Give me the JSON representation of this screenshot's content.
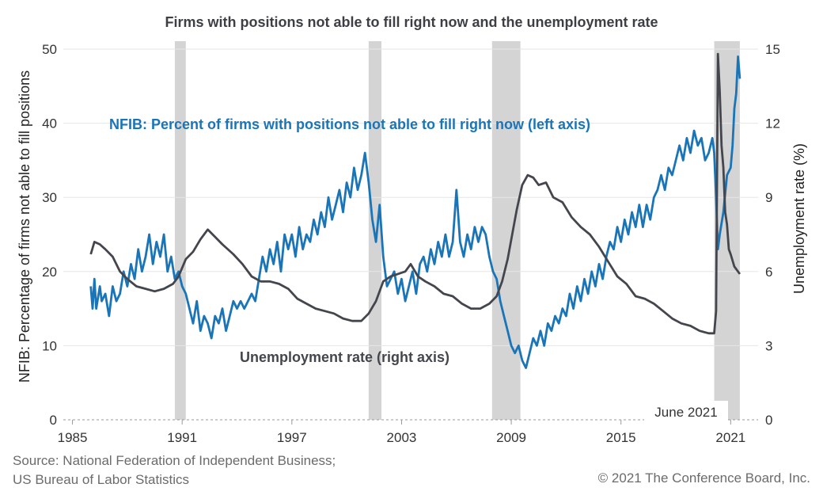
{
  "title": "Firms with positions not able to fill right now and the unemployment rate",
  "source_lines": [
    "Source: National Federation of Independent Business;",
    "US Bureau of Labor Statistics"
  ],
  "copyright": "© 2021 The Conference Board, Inc.",
  "chart_data": {
    "type": "line",
    "title": "Firms with positions not able to fill right now and the unemployment rate",
    "xlabel": "",
    "ylabel_left": "NFIB: Percentage of firms not able to fill positions",
    "ylabel_right": "Unemployment rate (%)",
    "xlim": [
      1984.5,
      2022.5
    ],
    "ylim_left": [
      0,
      50
    ],
    "ylim_right": [
      0,
      15
    ],
    "x_ticks": [
      1985,
      1991,
      1997,
      2003,
      2009,
      2015,
      2021
    ],
    "y_ticks_left": [
      0,
      10,
      20,
      30,
      40,
      50
    ],
    "y_ticks_right": [
      0,
      3,
      6,
      9,
      12,
      15
    ],
    "grid": "horizontal",
    "recessions": [
      [
        1990.6,
        1991.2
      ],
      [
        2001.2,
        2001.9
      ],
      [
        2007.95,
        2009.5
      ],
      [
        2020.1,
        2021.5
      ]
    ],
    "annotations": [
      "NFIB: Percent of firms with positions not able to fill right now (left axis)",
      "Unemployment rate (right axis)",
      "June 2021"
    ],
    "colors": {
      "nfib": "#1a75b8",
      "unemployment": "#44464d",
      "recession": "#d4d4d4",
      "grid": "#e6e6e6"
    },
    "series": [
      {
        "name": "NFIB: Percent of firms with positions not able to fill right now (left axis)",
        "axis": "left",
        "points": [
          [
            1986.0,
            18
          ],
          [
            1986.1,
            15
          ],
          [
            1986.2,
            19
          ],
          [
            1986.3,
            15
          ],
          [
            1986.5,
            18
          ],
          [
            1986.6,
            16
          ],
          [
            1986.8,
            17
          ],
          [
            1987.0,
            14
          ],
          [
            1987.2,
            18
          ],
          [
            1987.4,
            16
          ],
          [
            1987.6,
            17
          ],
          [
            1987.8,
            20
          ],
          [
            1988.0,
            18
          ],
          [
            1988.2,
            21
          ],
          [
            1988.4,
            19
          ],
          [
            1988.6,
            23
          ],
          [
            1988.8,
            20
          ],
          [
            1989.0,
            22
          ],
          [
            1989.2,
            25
          ],
          [
            1989.4,
            21
          ],
          [
            1989.6,
            24
          ],
          [
            1989.8,
            22
          ],
          [
            1990.0,
            25
          ],
          [
            1990.2,
            20
          ],
          [
            1990.4,
            22
          ],
          [
            1990.6,
            19
          ],
          [
            1990.8,
            20
          ],
          [
            1991.0,
            18
          ],
          [
            1991.2,
            17
          ],
          [
            1991.4,
            15
          ],
          [
            1991.6,
            13
          ],
          [
            1991.8,
            16
          ],
          [
            1992.0,
            12
          ],
          [
            1992.2,
            14
          ],
          [
            1992.4,
            13
          ],
          [
            1992.6,
            11
          ],
          [
            1992.8,
            14
          ],
          [
            1993.0,
            13
          ],
          [
            1993.2,
            15
          ],
          [
            1993.4,
            12
          ],
          [
            1993.6,
            14
          ],
          [
            1993.8,
            16
          ],
          [
            1994.0,
            15
          ],
          [
            1994.2,
            16
          ],
          [
            1994.4,
            15
          ],
          [
            1994.6,
            16
          ],
          [
            1994.8,
            17
          ],
          [
            1995.0,
            16
          ],
          [
            1995.2,
            19
          ],
          [
            1995.4,
            22
          ],
          [
            1995.6,
            20
          ],
          [
            1995.8,
            23
          ],
          [
            1996.0,
            21
          ],
          [
            1996.2,
            24
          ],
          [
            1996.4,
            20
          ],
          [
            1996.6,
            25
          ],
          [
            1996.8,
            23
          ],
          [
            1997.0,
            25
          ],
          [
            1997.2,
            22
          ],
          [
            1997.4,
            26
          ],
          [
            1997.6,
            23
          ],
          [
            1997.8,
            25
          ],
          [
            1998.0,
            24
          ],
          [
            1998.2,
            27
          ],
          [
            1998.4,
            25
          ],
          [
            1998.6,
            28
          ],
          [
            1998.8,
            26
          ],
          [
            1999.0,
            30
          ],
          [
            1999.2,
            27
          ],
          [
            1999.4,
            29
          ],
          [
            1999.6,
            31
          ],
          [
            1999.8,
            28
          ],
          [
            2000.0,
            32
          ],
          [
            2000.2,
            30
          ],
          [
            2000.4,
            34
          ],
          [
            2000.6,
            31
          ],
          [
            2000.8,
            33
          ],
          [
            2001.0,
            36
          ],
          [
            2001.2,
            32
          ],
          [
            2001.4,
            27
          ],
          [
            2001.6,
            24
          ],
          [
            2001.8,
            29
          ],
          [
            2002.0,
            22
          ],
          [
            2002.2,
            18
          ],
          [
            2002.4,
            19
          ],
          [
            2002.6,
            20
          ],
          [
            2002.8,
            17
          ],
          [
            2003.0,
            19
          ],
          [
            2003.2,
            16
          ],
          [
            2003.4,
            18
          ],
          [
            2003.6,
            20
          ],
          [
            2003.8,
            17
          ],
          [
            2004.0,
            21
          ],
          [
            2004.2,
            22
          ],
          [
            2004.4,
            20
          ],
          [
            2004.6,
            23
          ],
          [
            2004.8,
            21
          ],
          [
            2005.0,
            24
          ],
          [
            2005.2,
            22
          ],
          [
            2005.4,
            25
          ],
          [
            2005.6,
            22
          ],
          [
            2005.8,
            24
          ],
          [
            2006.0,
            31
          ],
          [
            2006.2,
            24
          ],
          [
            2006.4,
            22
          ],
          [
            2006.6,
            25
          ],
          [
            2006.8,
            23
          ],
          [
            2007.0,
            26
          ],
          [
            2007.2,
            24
          ],
          [
            2007.4,
            26
          ],
          [
            2007.6,
            25
          ],
          [
            2007.8,
            22
          ],
          [
            2008.0,
            20
          ],
          [
            2008.2,
            19
          ],
          [
            2008.4,
            16
          ],
          [
            2008.6,
            14
          ],
          [
            2008.8,
            12
          ],
          [
            2009.0,
            10
          ],
          [
            2009.2,
            9
          ],
          [
            2009.4,
            10
          ],
          [
            2009.6,
            8
          ],
          [
            2009.8,
            7
          ],
          [
            2010.0,
            9
          ],
          [
            2010.2,
            11
          ],
          [
            2010.4,
            10
          ],
          [
            2010.6,
            12
          ],
          [
            2010.8,
            10
          ],
          [
            2011.0,
            13
          ],
          [
            2011.2,
            12
          ],
          [
            2011.4,
            14
          ],
          [
            2011.6,
            13
          ],
          [
            2011.8,
            15
          ],
          [
            2012.0,
            14
          ],
          [
            2012.2,
            17
          ],
          [
            2012.4,
            15
          ],
          [
            2012.6,
            18
          ],
          [
            2012.8,
            16
          ],
          [
            2013.0,
            19
          ],
          [
            2013.2,
            17
          ],
          [
            2013.4,
            20
          ],
          [
            2013.6,
            18
          ],
          [
            2013.8,
            21
          ],
          [
            2014.0,
            19
          ],
          [
            2014.2,
            22
          ],
          [
            2014.4,
            24
          ],
          [
            2014.6,
            23
          ],
          [
            2014.8,
            26
          ],
          [
            2015.0,
            24
          ],
          [
            2015.2,
            27
          ],
          [
            2015.4,
            25
          ],
          [
            2015.6,
            28
          ],
          [
            2015.8,
            26
          ],
          [
            2016.0,
            29
          ],
          [
            2016.2,
            26
          ],
          [
            2016.4,
            29
          ],
          [
            2016.6,
            27
          ],
          [
            2016.8,
            30
          ],
          [
            2017.0,
            31
          ],
          [
            2017.2,
            33
          ],
          [
            2017.4,
            31
          ],
          [
            2017.6,
            34
          ],
          [
            2017.8,
            33
          ],
          [
            2018.0,
            35
          ],
          [
            2018.2,
            37
          ],
          [
            2018.4,
            35
          ],
          [
            2018.6,
            38
          ],
          [
            2018.8,
            36
          ],
          [
            2019.0,
            39
          ],
          [
            2019.2,
            37
          ],
          [
            2019.4,
            38
          ],
          [
            2019.6,
            35
          ],
          [
            2019.8,
            36
          ],
          [
            2020.0,
            38
          ],
          [
            2020.1,
            36
          ],
          [
            2020.2,
            30
          ],
          [
            2020.3,
            23
          ],
          [
            2020.4,
            25
          ],
          [
            2020.6,
            28
          ],
          [
            2020.8,
            33
          ],
          [
            2021.0,
            34
          ],
          [
            2021.1,
            37
          ],
          [
            2021.2,
            42
          ],
          [
            2021.3,
            44
          ],
          [
            2021.4,
            49
          ],
          [
            2021.5,
            46
          ]
        ]
      },
      {
        "name": "Unemployment rate (right axis)",
        "axis": "right",
        "points": [
          [
            1986.0,
            6.7
          ],
          [
            1986.2,
            7.2
          ],
          [
            1986.5,
            7.1
          ],
          [
            1986.8,
            6.9
          ],
          [
            1987.2,
            6.6
          ],
          [
            1987.6,
            6.0
          ],
          [
            1988.0,
            5.7
          ],
          [
            1988.5,
            5.4
          ],
          [
            1989.0,
            5.3
          ],
          [
            1989.5,
            5.2
          ],
          [
            1990.0,
            5.3
          ],
          [
            1990.5,
            5.5
          ],
          [
            1990.8,
            5.8
          ],
          [
            1991.2,
            6.5
          ],
          [
            1991.6,
            6.8
          ],
          [
            1992.0,
            7.3
          ],
          [
            1992.4,
            7.7
          ],
          [
            1992.8,
            7.4
          ],
          [
            1993.2,
            7.1
          ],
          [
            1993.8,
            6.7
          ],
          [
            1994.3,
            6.3
          ],
          [
            1994.8,
            5.8
          ],
          [
            1995.3,
            5.6
          ],
          [
            1995.8,
            5.6
          ],
          [
            1996.3,
            5.5
          ],
          [
            1996.8,
            5.3
          ],
          [
            1997.3,
            4.9
          ],
          [
            1997.8,
            4.7
          ],
          [
            1998.3,
            4.5
          ],
          [
            1998.8,
            4.4
          ],
          [
            1999.3,
            4.3
          ],
          [
            1999.8,
            4.1
          ],
          [
            2000.3,
            4.0
          ],
          [
            2000.8,
            4.0
          ],
          [
            2001.2,
            4.3
          ],
          [
            2001.6,
            4.8
          ],
          [
            2002.0,
            5.6
          ],
          [
            2002.4,
            5.8
          ],
          [
            2002.8,
            5.9
          ],
          [
            2003.2,
            6.0
          ],
          [
            2003.5,
            6.3
          ],
          [
            2003.9,
            5.8
          ],
          [
            2004.3,
            5.6
          ],
          [
            2004.8,
            5.4
          ],
          [
            2005.3,
            5.1
          ],
          [
            2005.8,
            5.0
          ],
          [
            2006.3,
            4.7
          ],
          [
            2006.8,
            4.5
          ],
          [
            2007.3,
            4.5
          ],
          [
            2007.8,
            4.7
          ],
          [
            2008.2,
            5.0
          ],
          [
            2008.5,
            5.6
          ],
          [
            2008.8,
            6.5
          ],
          [
            2009.0,
            7.3
          ],
          [
            2009.3,
            8.5
          ],
          [
            2009.6,
            9.5
          ],
          [
            2009.9,
            9.9
          ],
          [
            2010.2,
            9.8
          ],
          [
            2010.5,
            9.5
          ],
          [
            2010.9,
            9.6
          ],
          [
            2011.3,
            9.0
          ],
          [
            2011.8,
            8.8
          ],
          [
            2012.3,
            8.2
          ],
          [
            2012.8,
            7.8
          ],
          [
            2013.3,
            7.5
          ],
          [
            2013.8,
            7.0
          ],
          [
            2014.3,
            6.4
          ],
          [
            2014.8,
            5.8
          ],
          [
            2015.3,
            5.5
          ],
          [
            2015.8,
            5.0
          ],
          [
            2016.3,
            4.9
          ],
          [
            2016.8,
            4.7
          ],
          [
            2017.3,
            4.4
          ],
          [
            2017.8,
            4.1
          ],
          [
            2018.3,
            3.9
          ],
          [
            2018.8,
            3.8
          ],
          [
            2019.3,
            3.6
          ],
          [
            2019.8,
            3.5
          ],
          [
            2020.1,
            3.5
          ],
          [
            2020.2,
            4.4
          ],
          [
            2020.3,
            14.8
          ],
          [
            2020.4,
            13.3
          ],
          [
            2020.5,
            11.1
          ],
          [
            2020.6,
            10.2
          ],
          [
            2020.7,
            8.4
          ],
          [
            2020.8,
            7.9
          ],
          [
            2020.9,
            6.9
          ],
          [
            2021.0,
            6.7
          ],
          [
            2021.2,
            6.2
          ],
          [
            2021.4,
            6.0
          ],
          [
            2021.5,
            5.9
          ]
        ]
      }
    ]
  }
}
